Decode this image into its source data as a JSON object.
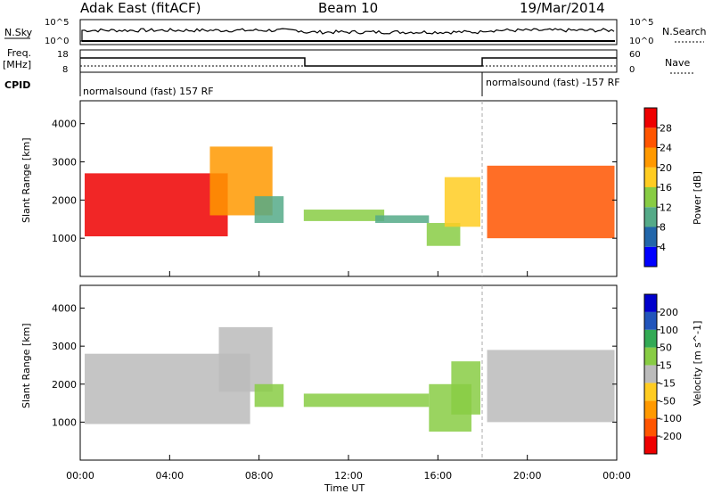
{
  "header": {
    "station": "Adak East (fitACF)",
    "beam": "Beam 10",
    "date": "19/Mar/2014"
  },
  "panel_nsky": {
    "left_label": "N.Sky",
    "right_label": "N.Search",
    "left_ticks": [
      "10^5",
      "10^0"
    ],
    "right_ticks": [
      "10^5",
      "10^0"
    ]
  },
  "panel_freq": {
    "left_label_1": "Freq.",
    "left_label_2": "[MHz]",
    "left_ticks": [
      "18",
      "8"
    ],
    "right_label": "Nave",
    "right_ticks": [
      "60",
      "0"
    ]
  },
  "panel_cpid": {
    "left_label": "CPID",
    "segment_1": "normalsound (fast) 157 RF",
    "segment_2": "normalsound (fast) -157 RF"
  },
  "x_axis": {
    "label": "Time UT",
    "ticks": [
      "00:00",
      "04:00",
      "08:00",
      "12:00",
      "16:00",
      "20:00",
      "00:00"
    ]
  },
  "chart_data": [
    {
      "type": "heatmap",
      "title": "",
      "xlabel": "Time UT",
      "ylabel": "Slant Range [km]",
      "xlim": [
        0,
        24
      ],
      "ylim": [
        0,
        4600
      ],
      "y_ticks": [
        1000,
        2000,
        3000,
        4000
      ],
      "colorbar_label": "Power [dB]",
      "colorbar_ticks": [
        "28",
        "24",
        "20",
        "16",
        "12",
        "8",
        "4"
      ],
      "colorbar_colors": [
        "#0000ff",
        "#2266aa",
        "#55aa88",
        "#88cc44",
        "#ffcc22",
        "#ff9900",
        "#ff5500",
        "#ee0000"
      ],
      "regions": [
        {
          "t_start": 0.2,
          "t_end": 6.6,
          "r_low": 1050,
          "r_high": 2700,
          "value_db": 26
        },
        {
          "t_start": 5.8,
          "t_end": 8.6,
          "r_low": 1600,
          "r_high": 3400,
          "value_db": 20
        },
        {
          "t_start": 7.8,
          "t_end": 9.1,
          "r_low": 1400,
          "r_high": 2100,
          "value_db": 6
        },
        {
          "t_start": 10.0,
          "t_end": 13.6,
          "r_low": 1450,
          "r_high": 1750,
          "value_db": 10
        },
        {
          "t_start": 13.2,
          "t_end": 15.6,
          "r_low": 1400,
          "r_high": 1600,
          "value_db": 8
        },
        {
          "t_start": 15.5,
          "t_end": 17.0,
          "r_low": 800,
          "r_high": 1400,
          "value_db": 10
        },
        {
          "t_start": 16.3,
          "t_end": 17.9,
          "r_low": 1300,
          "r_high": 2600,
          "value_db": 16
        },
        {
          "t_start": 18.2,
          "t_end": 23.9,
          "r_low": 1000,
          "r_high": 2900,
          "value_db": 24
        }
      ]
    },
    {
      "type": "heatmap",
      "title": "",
      "xlabel": "Time UT",
      "ylabel": "Slant Range [km]",
      "xlim": [
        0,
        24
      ],
      "ylim": [
        0,
        4600
      ],
      "y_ticks": [
        1000,
        2000,
        3000,
        4000
      ],
      "colorbar_label": "Velocity [m s^-1]",
      "colorbar_ticks": [
        "200",
        "100",
        "50",
        "15",
        "-15",
        "-50",
        "-100",
        "-200"
      ],
      "colorbar_colors": [
        "#ee0000",
        "#ff5500",
        "#ff9900",
        "#ffcc22",
        "#bbbbbb",
        "#88cc44",
        "#33aa55",
        "#2255bb",
        "#0000cc"
      ],
      "regions": [
        {
          "t_start": 0.2,
          "t_end": 7.6,
          "r_low": 950,
          "r_high": 2800,
          "value_ms": 0
        },
        {
          "t_start": 6.2,
          "t_end": 8.6,
          "r_low": 1800,
          "r_high": 3500,
          "value_ms": 0
        },
        {
          "t_start": 7.8,
          "t_end": 9.1,
          "r_low": 1400,
          "r_high": 2000,
          "value_ms": 40
        },
        {
          "t_start": 10.0,
          "t_end": 15.6,
          "r_low": 1400,
          "r_high": 1750,
          "value_ms": 20
        },
        {
          "t_start": 15.6,
          "t_end": 17.5,
          "r_low": 750,
          "r_high": 2000,
          "value_ms": 40
        },
        {
          "t_start": 16.6,
          "t_end": 17.9,
          "r_low": 1200,
          "r_high": 2600,
          "value_ms": 40
        },
        {
          "t_start": 18.2,
          "t_end": 23.9,
          "r_low": 1000,
          "r_high": 2900,
          "value_ms": 0
        }
      ]
    }
  ]
}
